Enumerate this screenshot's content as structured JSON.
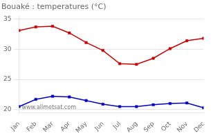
{
  "chart_data": {
    "type": "line",
    "title": "Bouaké : temperatures (°C)",
    "categories": [
      "Jan",
      "Feb",
      "Mar",
      "Apr",
      "May",
      "Jun",
      "Jul",
      "Aug",
      "Sep",
      "Oct",
      "Nov",
      "Dec"
    ],
    "series": [
      {
        "color": "#cc0000",
        "marker": "square",
        "values": [
          33.1,
          33.7,
          33.8,
          32.7,
          31.1,
          29.8,
          27.6,
          27.5,
          28.5,
          30.1,
          31.4,
          31.8
        ]
      },
      {
        "color": "#0000cc",
        "marker": "square",
        "values": [
          20.5,
          21.7,
          22.2,
          22.1,
          21.5,
          20.9,
          20.5,
          20.5,
          20.8,
          21.0,
          21.1,
          20.3
        ]
      }
    ],
    "ylim": [
      19.5,
      35.5
    ],
    "yticks": [
      20,
      25,
      30,
      35
    ],
    "grid": true,
    "annotation": "www.allmetsat.com"
  }
}
